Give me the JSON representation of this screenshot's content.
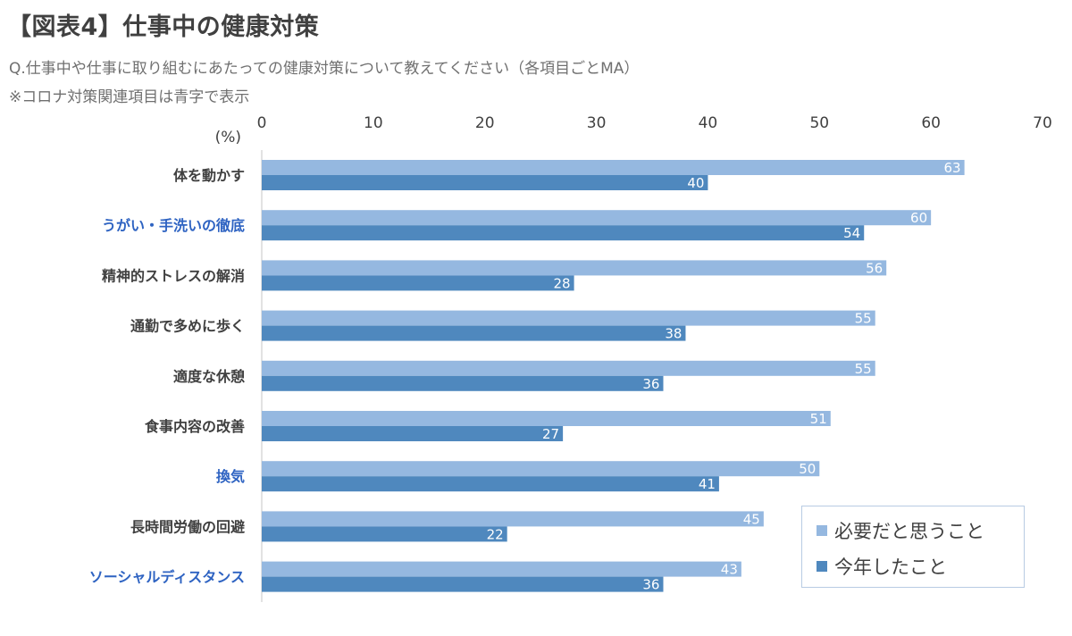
{
  "title": "【図表4】仕事中の健康対策",
  "subtitle": "Q.仕事中や仕事に取り組むにあたっての健康対策について教えてください（各項目ごとMA）",
  "note": "※コロナ対策関連項目は青字で表示",
  "colors": {
    "necessary": "#95b8e0",
    "done": "#4f88be",
    "covid_label": "#2e63c2",
    "label": "#404040"
  },
  "chart_data": {
    "type": "bar",
    "orientation": "horizontal",
    "unit_label": "(%)",
    "xlim": [
      0,
      70
    ],
    "ticks": [
      0,
      10,
      20,
      30,
      40,
      50,
      60,
      70
    ],
    "categories": [
      "体を動かす",
      "うがい・手洗いの徹底",
      "精神的ストレスの解消",
      "通勤で多めに歩く",
      "適度な休憩",
      "食事内容の改善",
      "換気",
      "長時間労働の回避",
      "ソーシャルディスタンス"
    ],
    "covid_related": [
      false,
      true,
      false,
      false,
      false,
      false,
      true,
      false,
      true
    ],
    "series": [
      {
        "name": "必要だと思うこと",
        "values": [
          63,
          60,
          56,
          55,
          55,
          51,
          50,
          45,
          43
        ]
      },
      {
        "name": "今年したこと",
        "values": [
          40,
          54,
          28,
          38,
          36,
          27,
          41,
          22,
          36
        ]
      }
    ],
    "legend_position": "bottom-right",
    "grid": false
  }
}
